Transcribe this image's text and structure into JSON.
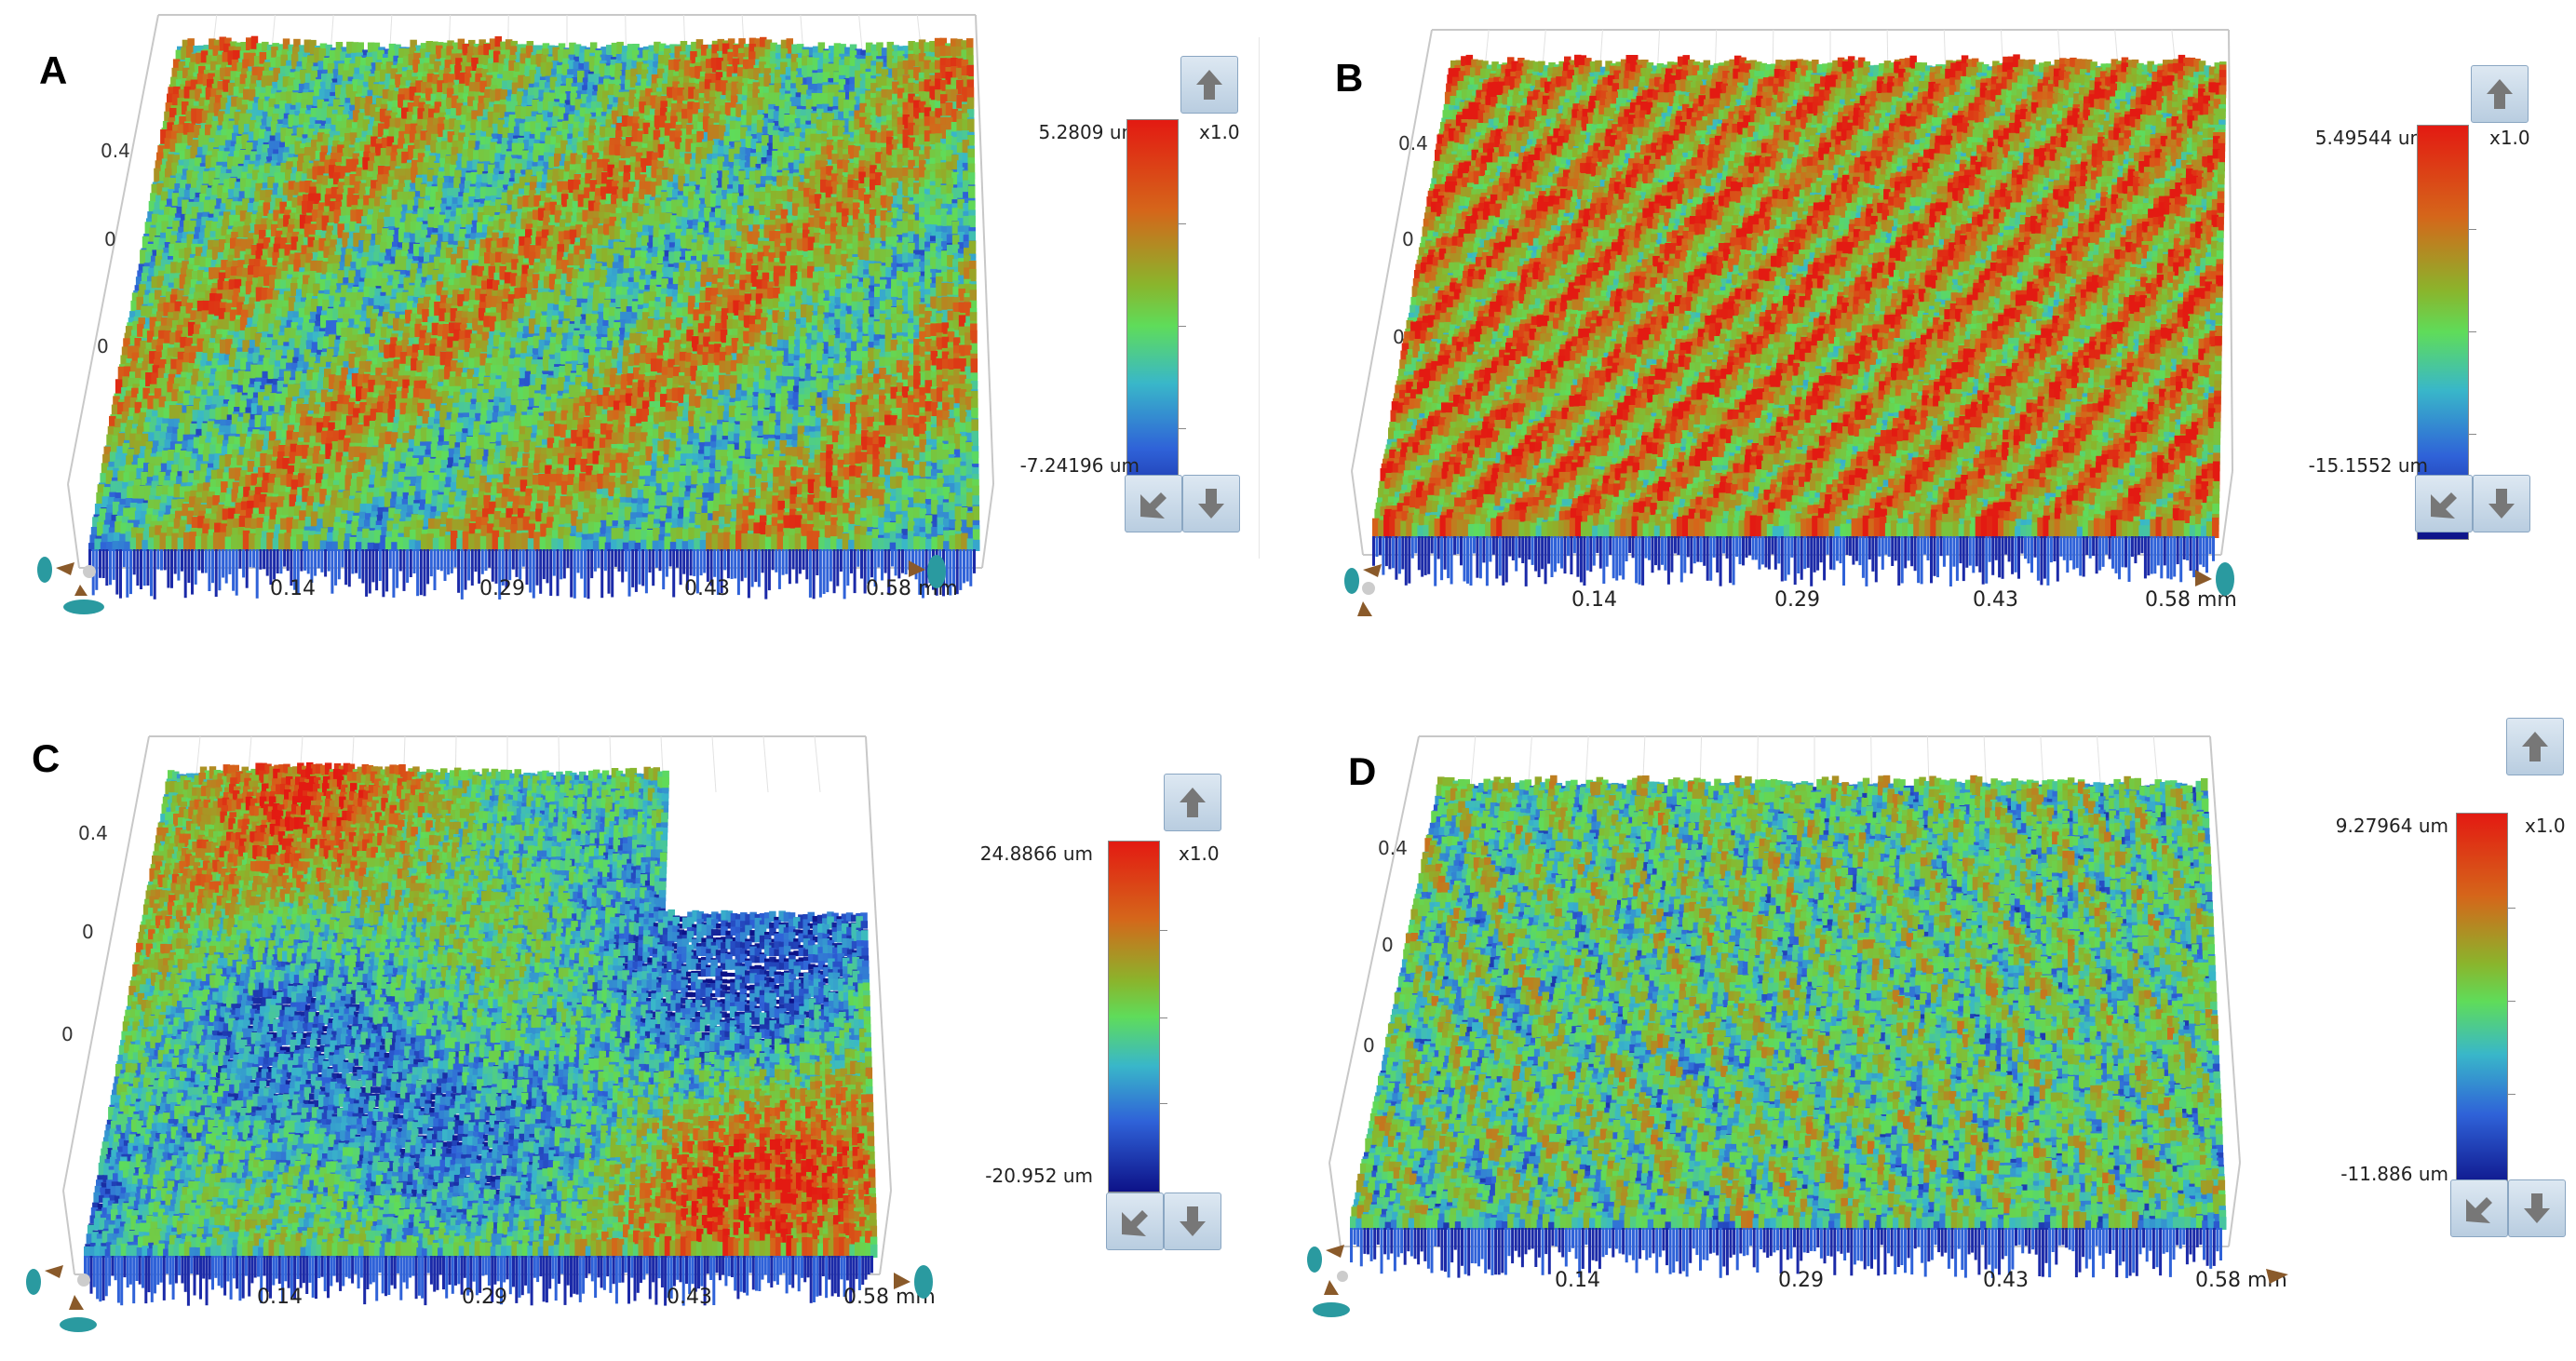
{
  "colors": {
    "surface_high": "#e31a12",
    "surface_mid": "#5fdc5a",
    "surface_low": "#0d1288",
    "button_bg": "#c9d9e8"
  },
  "icons": {
    "scale_up": "arrow-up-icon",
    "scale_down": "arrow-down-icon",
    "reset": "reset-arrow-icon",
    "rotate": "rotate-gizmo-icon"
  },
  "panels": [
    {
      "letter": "A",
      "max_label": "5.2809 um",
      "min_label": "-7.24196 um",
      "scale": "x1.0",
      "x_ticks": [
        "0.14",
        "0.29",
        "0.43",
        "0.58 mm"
      ],
      "y_ticks": [
        "0.4",
        "0",
        "0"
      ]
    },
    {
      "letter": "B",
      "max_label": "5.49544 um",
      "min_label": "-15.1552 um",
      "scale": "x1.0",
      "x_ticks": [
        "0.14",
        "0.29",
        "0.43",
        "0.58 mm"
      ],
      "y_ticks": [
        "0.4",
        "0",
        "0"
      ]
    },
    {
      "letter": "C",
      "max_label": "24.8866 um",
      "min_label": "-20.952 um",
      "scale": "x1.0",
      "x_ticks": [
        "0.14",
        "0.29",
        "0.43",
        "0.58 mm"
      ],
      "y_ticks": [
        "0.4",
        "0",
        "0"
      ]
    },
    {
      "letter": "D",
      "max_label": "9.27964 um",
      "min_label": "-11.886 um",
      "scale": "x1.0",
      "x_ticks": [
        "0.14",
        "0.29",
        "0.43",
        "0.58 mm"
      ],
      "y_ticks": [
        "0.4",
        "0",
        "0"
      ]
    }
  ]
}
